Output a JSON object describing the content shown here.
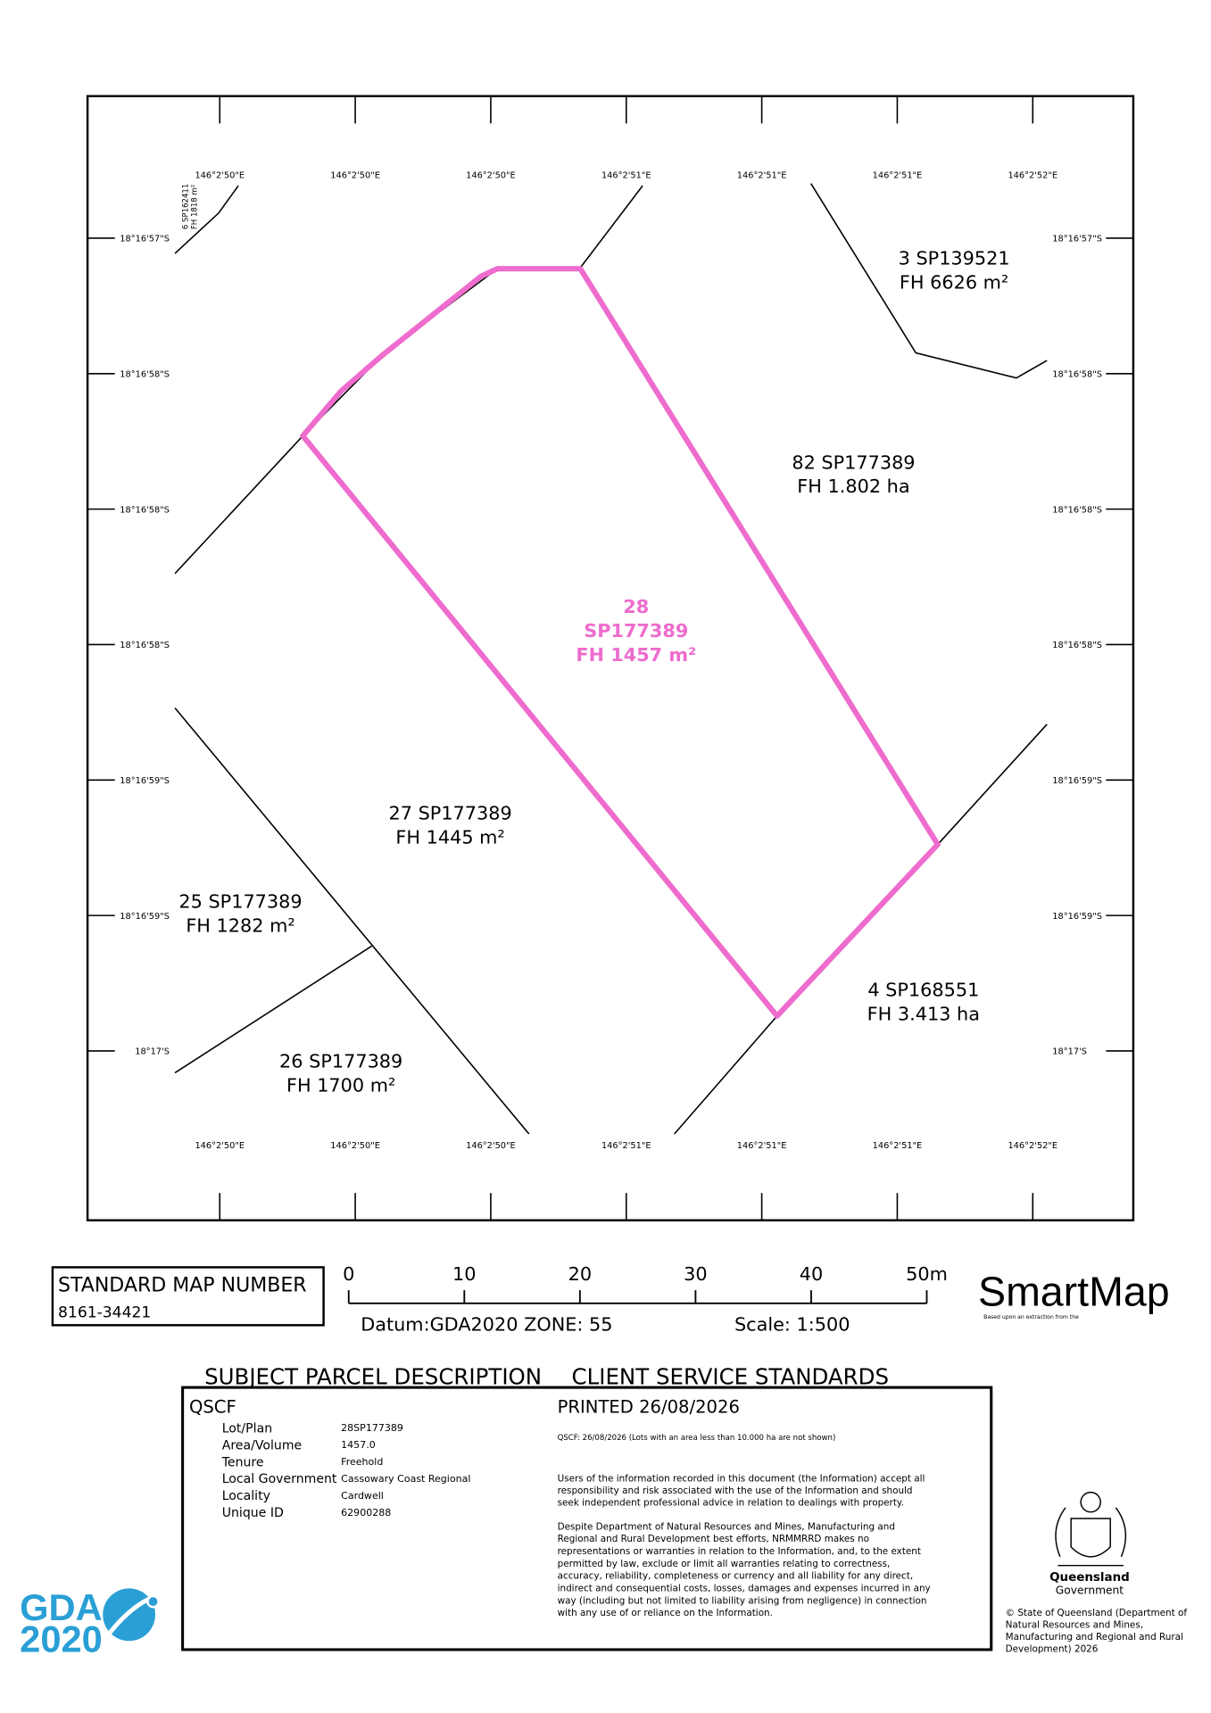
{
  "map": {
    "top_coords": [
      "146°2'50\"E",
      "146°2'50\"E",
      "146°2'50\"E",
      "146°2'51\"E",
      "146°2'51\"E",
      "146°2'51\"E",
      "146°2'52\"E"
    ],
    "bottom_coords": [
      "146°2'50\"E",
      "146°2'50\"E",
      "146°2'50\"E",
      "146°2'51\"E",
      "146°2'51\"E",
      "146°2'51\"E",
      "146°2'52\"E"
    ],
    "left_coords": [
      "18°16'57\"S",
      "18°16'58\"S",
      "18°16'58\"S",
      "18°16'58\"S",
      "18°16'59\"S",
      "18°16'59\"S",
      "18°17'S"
    ],
    "right_coords": [
      "18°16'57\"S",
      "18°16'58\"S",
      "18°16'58\"S",
      "18°16'58\"S",
      "18°16'59\"S",
      "18°16'59\"S",
      "18°17'S"
    ],
    "small_parcel": [
      "6  SP162411",
      "FH 1818 m²"
    ],
    "parcels": [
      {
        "lines": [
          "3  SP139521",
          "FH 6626 m²"
        ]
      },
      {
        "lines": [
          "82 SP177389",
          "FH 1.802 ha"
        ]
      },
      {
        "lines": [
          "28",
          "SP177389",
          "FH 1457 m²"
        ]
      },
      {
        "lines": [
          "27 SP177389",
          "FH 1445 m²"
        ]
      },
      {
        "lines": [
          "25 SP177389",
          "FH 1282 m²"
        ]
      },
      {
        "lines": [
          "4 SP168551",
          "FH 3.413 ha"
        ]
      },
      {
        "lines": [
          "26 SP177389",
          "FH 1700 m²"
        ]
      }
    ]
  },
  "map_number": {
    "label": "STANDARD MAP NUMBER",
    "value": "8161-34421"
  },
  "scale_bar": {
    "labels": [
      "0",
      "10",
      "20",
      "30",
      "40",
      "50m"
    ],
    "datum": "Datum:GDA2020 ZONE: 55",
    "scale": "Scale: 1:500"
  },
  "brand": {
    "name": "SmartMap",
    "note": "Based upon an extraction from the"
  },
  "headings": {
    "subject": "SUBJECT PARCEL DESCRIPTION",
    "client": "CLIENT SERVICE STANDARDS"
  },
  "parcel": {
    "code": "QSCF",
    "fields": [
      {
        "label": "Lot/Plan",
        "value": "28SP177389"
      },
      {
        "label": "Area/Volume",
        "value": "1457.0"
      },
      {
        "label": "Tenure",
        "value": "Freehold"
      },
      {
        "label": "Local Government",
        "value": "Cassowary Coast Regional"
      },
      {
        "label": "Locality",
        "value": "Cardwell"
      },
      {
        "label": "Unique ID",
        "value": "62900288"
      }
    ]
  },
  "standards": {
    "printed": "PRINTED 26/08/2026",
    "note": "QSCF: 26/08/2026 (Lots with an area less than 10.000 ha are not shown)",
    "para1": [
      "Users of the information recorded in this document (the Information) accept all",
      "responsibility and risk associated with the use of the Information and should",
      "seek independent professional advice in relation to dealings with property."
    ],
    "para2": [
      "Despite Department of Natural Resources and Mines, Manufacturing and",
      "Regional and Rural Development best efforts, NRMMRRD makes no",
      "representations or warranties in relation to the Information, and, to the extent",
      "permitted by law, exclude or limit all warranties relating to correctness,",
      "accuracy, reliability, completeness or currency and all liability for any direct,",
      "indirect and consequential costs, losses, damages and expenses incurred in any",
      "way (including but not limited to liability arising from negligence) in connection",
      "with any use of or reliance on the Information."
    ]
  },
  "gda": {
    "line1": "GDA",
    "line2": "2020"
  },
  "government": {
    "line1": "Queensland",
    "line2": "Government"
  },
  "copyright": [
    "© State of Queensland (Department of",
    "Natural Resources and Mines,",
    "Manufacturing and Regional and Rural",
    "Development) 2026"
  ]
}
